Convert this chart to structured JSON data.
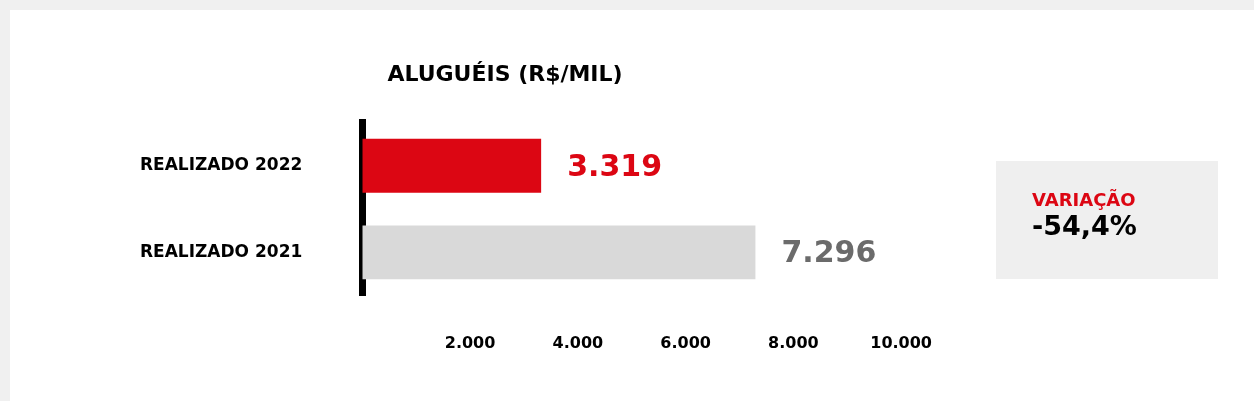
{
  "chart_data": {
    "type": "bar",
    "orientation": "horizontal",
    "title": "ALUGUÉIS (R$/MIL)",
    "categories": [
      "REALIZADO 2022",
      "REALIZADO 2021"
    ],
    "values": [
      3319,
      7296
    ],
    "colors": [
      "#dc0613",
      "#d9d9d9"
    ],
    "value_labels": [
      "3.319",
      "7.296"
    ],
    "xlim": [
      0,
      10000
    ],
    "xticks": [
      {
        "value": 2000,
        "label": "2.000"
      },
      {
        "value": 4000,
        "label": "4.000"
      },
      {
        "value": 6000,
        "label": "6.000"
      },
      {
        "value": 8000,
        "label": "8.000"
      },
      {
        "value": 10000,
        "label": "10.000"
      }
    ],
    "grid": false,
    "legend": false,
    "annotations": [
      "VARIAÇÃO",
      "-54,4%"
    ]
  }
}
